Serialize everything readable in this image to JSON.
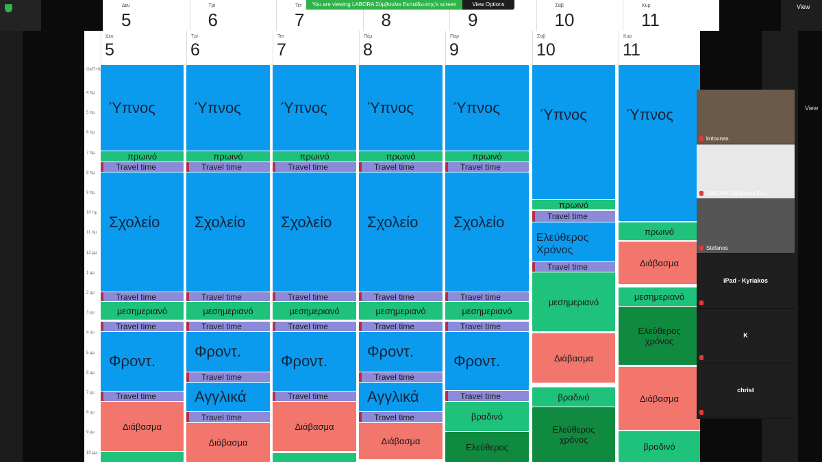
{
  "share_banner": "You are viewing LABORA Σύμβουλοι Εκπαίδευσης's screen",
  "view_options": "View Options",
  "view_button": "View",
  "side_view_label": "View",
  "calendar": {
    "timezone": "GMT+02",
    "hours": [
      "4 πμ",
      "5 πμ",
      "6 πμ",
      "7 πμ",
      "8 πμ",
      "9 πμ",
      "10 πμ",
      "11 πμ",
      "12 μμ",
      "1 μμ",
      "2 μμ",
      "3 μμ",
      "4 μμ",
      "5 μμ",
      "6 μμ",
      "7 μμ",
      "8 μμ",
      "9 μμ",
      "10 μμ"
    ],
    "days": [
      {
        "abbr": "Δευ",
        "number": "5",
        "events": [
          {
            "label": "Ύπνος"
          },
          {
            "label": "πρωινό"
          },
          {
            "label": "Travel time"
          },
          {
            "label": "Σχολείο"
          },
          {
            "label": "Travel time"
          },
          {
            "label": "μεσημεριανό"
          },
          {
            "label": "Travel time"
          },
          {
            "label": "Φροντ."
          },
          {
            "label": "Travel time"
          },
          {
            "label": "Διάβασμα"
          }
        ]
      },
      {
        "abbr": "Τρί",
        "number": "6",
        "events": [
          {
            "label": "Ύπνος"
          },
          {
            "label": "πρωινό"
          },
          {
            "label": "Travel time"
          },
          {
            "label": "Σχολείο"
          },
          {
            "label": "Travel time"
          },
          {
            "label": "μεσημεριανό"
          },
          {
            "label": "Travel time"
          },
          {
            "label": "Φροντ."
          },
          {
            "label": "Travel time"
          },
          {
            "label": "Αγγλικά"
          },
          {
            "label": "Travel time"
          },
          {
            "label": "Διάβασμα"
          }
        ]
      },
      {
        "abbr": "Τετ",
        "number": "7",
        "events": [
          {
            "label": "Ύπνος"
          },
          {
            "label": "πρωινό"
          },
          {
            "label": "Travel time"
          },
          {
            "label": "Σχολείο"
          },
          {
            "label": "Travel time"
          },
          {
            "label": "μεσημεριανό"
          },
          {
            "label": "Travel time"
          },
          {
            "label": "Φροντ."
          },
          {
            "label": "Travel time"
          },
          {
            "label": "Διάβασμα"
          }
        ]
      },
      {
        "abbr": "Πέμ",
        "number": "8",
        "events": [
          {
            "label": "Ύπνος"
          },
          {
            "label": "πρωινό"
          },
          {
            "label": "Travel time"
          },
          {
            "label": "Σχολείο"
          },
          {
            "label": "Travel time"
          },
          {
            "label": "μεσημεριανό"
          },
          {
            "label": "Travel time"
          },
          {
            "label": "Φροντ."
          },
          {
            "label": "Travel time"
          },
          {
            "label": "Αγγλικά"
          },
          {
            "label": "Travel time"
          },
          {
            "label": "Διάβασμα"
          }
        ]
      },
      {
        "abbr": "Παρ",
        "number": "9",
        "events": [
          {
            "label": "Ύπνος"
          },
          {
            "label": "πρωινό"
          },
          {
            "label": "Travel time"
          },
          {
            "label": "Σχολείο"
          },
          {
            "label": "Travel time"
          },
          {
            "label": "μεσημεριανό"
          },
          {
            "label": "Travel time"
          },
          {
            "label": "Φροντ."
          },
          {
            "label": "Travel time"
          },
          {
            "label": "βραδινό"
          },
          {
            "label": "Ελεύθερος"
          }
        ]
      },
      {
        "abbr": "Σαβ",
        "number": "10",
        "events": [
          {
            "label": "Ύπνος"
          },
          {
            "label": "πρωινό"
          },
          {
            "label": "Travel time"
          },
          {
            "label": "Ελεύθερος Χρόνος"
          },
          {
            "label": "Travel time"
          },
          {
            "label": "μεσημεριανό"
          },
          {
            "label": "Διάβασμα"
          },
          {
            "label": "βραδινό"
          },
          {
            "label": "Ελεύθερος χρόνος"
          }
        ]
      },
      {
        "abbr": "Κυρ",
        "number": "11",
        "events": [
          {
            "label": "Ύπνος"
          },
          {
            "label": "πρωινό"
          },
          {
            "label": "Διάβασμα"
          },
          {
            "label": "μεσημεριανό"
          },
          {
            "label": "Ελεύθερος χρόνος"
          },
          {
            "label": "Διάβασμα"
          },
          {
            "label": "βραδινό"
          }
        ]
      }
    ]
  },
  "participants": [
    {
      "name": "kntounas"
    },
    {
      "name": "LABORA Σύμβουλοι Εκπ..."
    },
    {
      "name": "Stefanos"
    },
    {
      "name": "iPad - Kyriakos"
    },
    {
      "name": "K"
    },
    {
      "name": "christ"
    }
  ]
}
